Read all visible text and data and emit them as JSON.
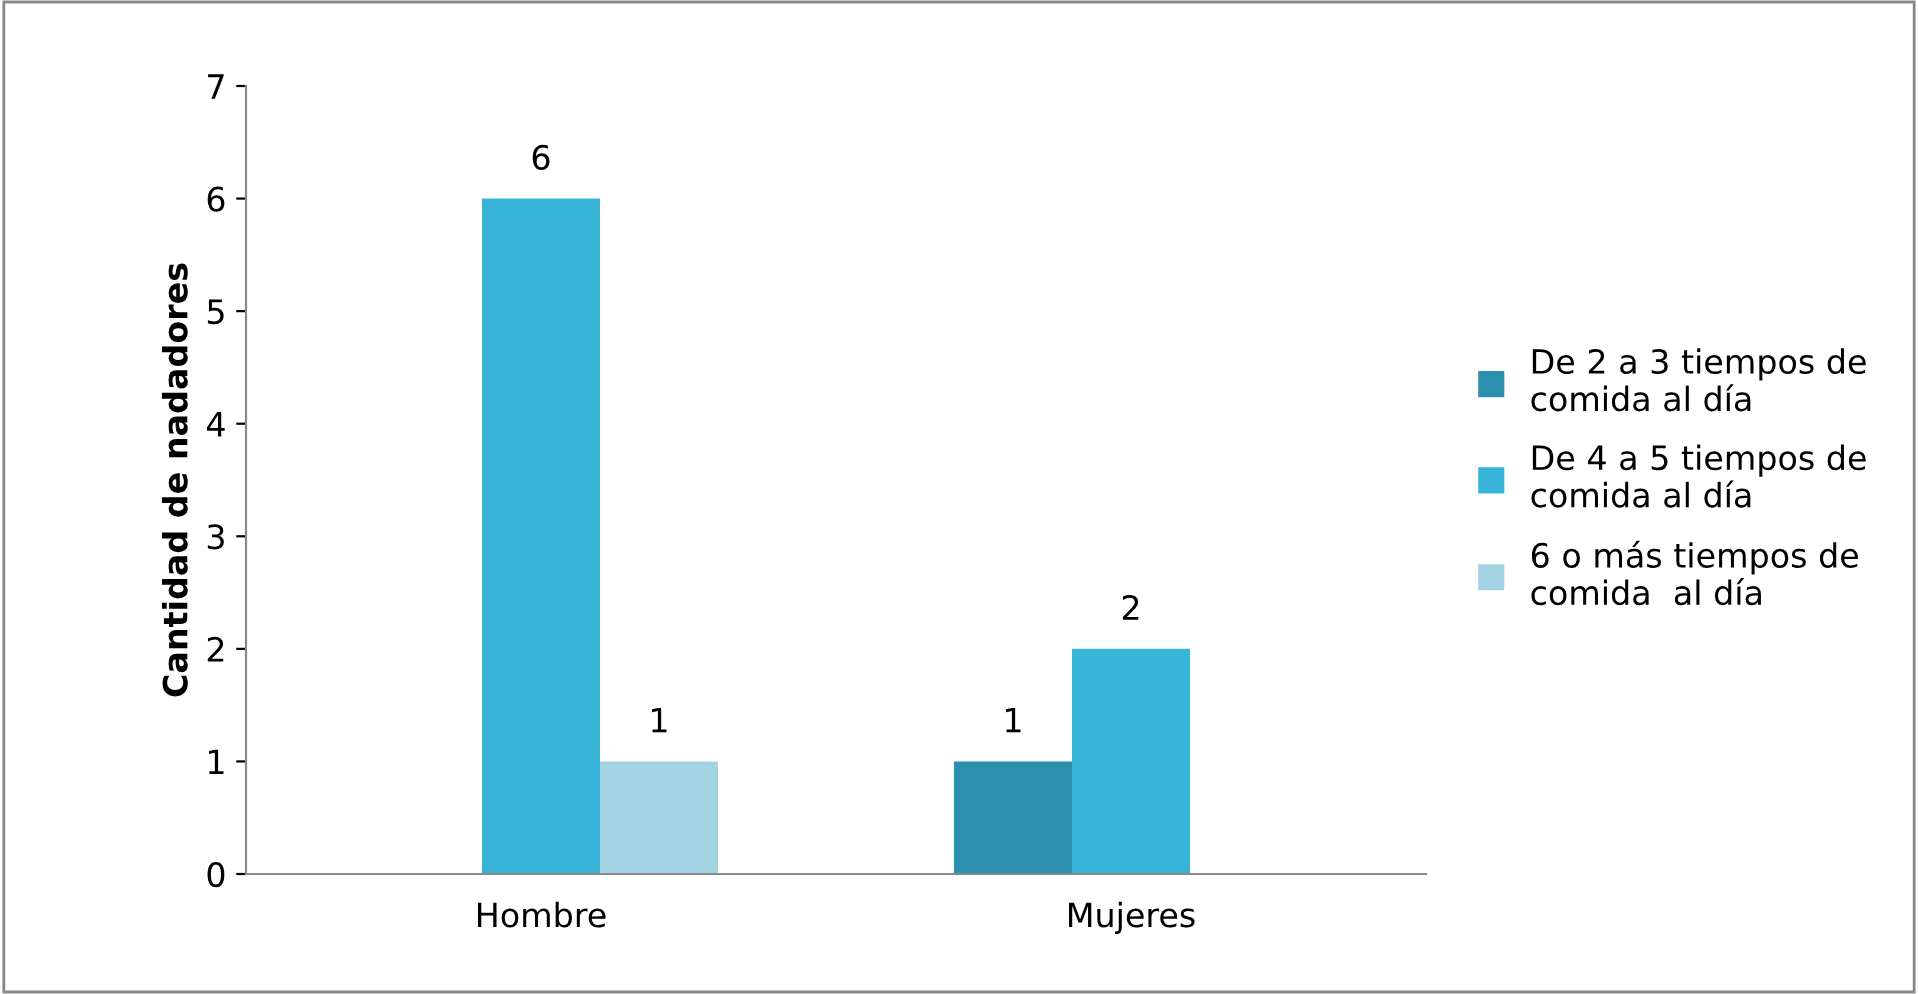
{
  "chart_data": {
    "type": "bar",
    "ylabel": "Cantidad de nadadores",
    "categories": [
      "Hombre",
      "Mujeres"
    ],
    "series": [
      {
        "name": "De 2 a 3 tiempos de comida al día",
        "color": "#2b8fae",
        "values": [
          null,
          1
        ]
      },
      {
        "name": "De 4 a 5 tiempos de comida al día",
        "color": "#38b4d8",
        "values": [
          6,
          2
        ]
      },
      {
        "name": "6 o más tiempos de comida  al día",
        "color": "#a3d3e3",
        "values": [
          1,
          null
        ]
      }
    ],
    "ylim": [
      0,
      7
    ],
    "yticks": [
      0,
      1,
      2,
      3,
      4,
      5,
      6,
      7
    ],
    "grid": false,
    "legend": "right",
    "data_labels": true
  }
}
